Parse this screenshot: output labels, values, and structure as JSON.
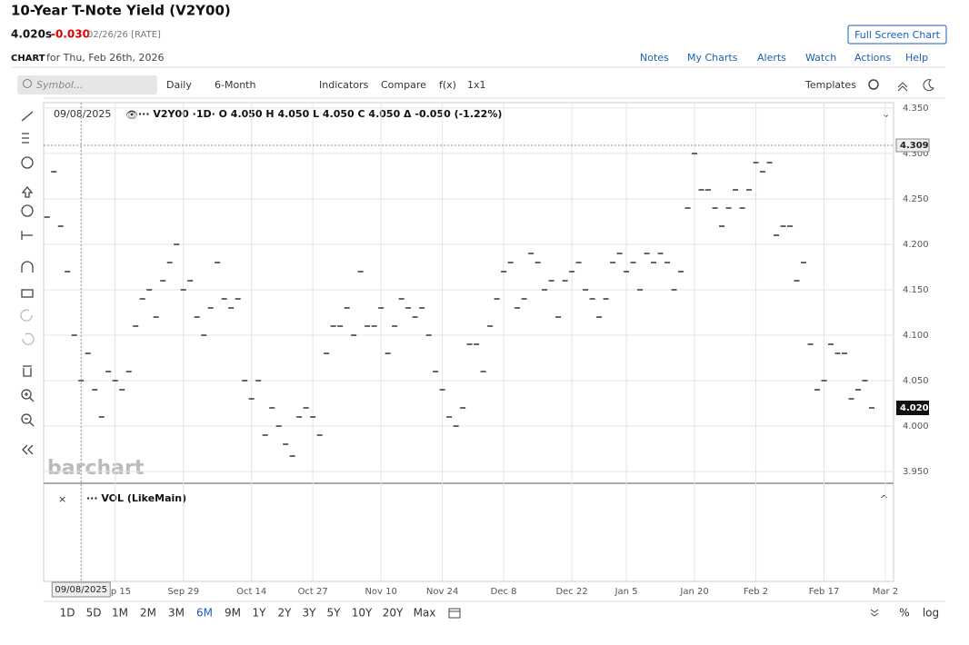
{
  "header": {
    "title": "10-Year T-Note Yield (V2Y00)",
    "last": "4.020s",
    "change": "-0.030",
    "date": "02/26/26 [RATE]",
    "chart_label": "CHART",
    "chart_for": "for Thu, Feb 26th, 2026",
    "full_screen": "Full Screen Chart",
    "links": [
      "Notes",
      "My Charts",
      "Alerts",
      "Watch",
      "Actions",
      "Help"
    ]
  },
  "toolbar": {
    "symbol_placeholder": "Symbol...",
    "items": [
      "Daily",
      "6-Month",
      "Indicators",
      "Compare",
      "f(x)",
      "1x1"
    ],
    "templates": "Templates"
  },
  "chart": {
    "legend_date": "09/08/2025",
    "legend": "··· V2Y00 ·1D· O 4.050 H 4.050 L 4.050 C 4.050 Δ -0.050 (-1.22%)",
    "volume_label": "··· VOL (LikeMain)",
    "watermark": "barchart",
    "crosshair_index": 5,
    "crosshair_label": "09/08/2025",
    "crosshair_price": {
      "value": 4.309,
      "label": "4.309"
    },
    "last_price": {
      "value": 4.02,
      "label": "4.020"
    },
    "ylim": [
      3.939,
      4.356
    ],
    "yticks": [
      {
        "value": 3.95,
        "label": "3.950"
      },
      {
        "value": 4.0,
        "label": "4.000"
      },
      {
        "value": 4.05,
        "label": "4.050"
      },
      {
        "value": 4.1,
        "label": "4.100"
      },
      {
        "value": 4.15,
        "label": "4.150"
      },
      {
        "value": 4.2,
        "label": "4.200"
      },
      {
        "value": 4.25,
        "label": "4.250"
      },
      {
        "value": 4.3,
        "label": "4.300"
      },
      {
        "value": 4.35,
        "label": "4.350"
      }
    ],
    "xlim": [
      -0.5,
      124.2
    ],
    "xticks": [
      {
        "value": 10,
        "label": "Sep 15"
      },
      {
        "value": 20,
        "label": "Sep 29"
      },
      {
        "value": 30,
        "label": "Oct 14"
      },
      {
        "value": 39,
        "label": "Oct 27"
      },
      {
        "value": 49,
        "label": "Nov 10"
      },
      {
        "value": 58,
        "label": "Nov 24"
      },
      {
        "value": 67,
        "label": "Dec 8"
      },
      {
        "value": 77,
        "label": "Dec 22"
      },
      {
        "value": 85,
        "label": "Jan 5"
      },
      {
        "value": 95,
        "label": "Jan 20"
      },
      {
        "value": 104,
        "label": "Feb 2"
      },
      {
        "value": 114,
        "label": "Feb 17"
      },
      {
        "value": 123,
        "label": "Mar 2"
      }
    ],
    "color": "#333333",
    "values": [
      4.23,
      4.28,
      4.22,
      4.17,
      4.1,
      4.05,
      4.08,
      4.04,
      4.01,
      4.06,
      4.05,
      4.04,
      4.06,
      4.11,
      4.14,
      4.15,
      4.12,
      4.16,
      4.18,
      4.2,
      4.15,
      4.16,
      4.12,
      4.1,
      4.13,
      4.18,
      4.14,
      4.13,
      4.14,
      4.05,
      4.03,
      4.05,
      3.99,
      4.02,
      4.0,
      3.98,
      3.967,
      4.01,
      4.02,
      4.01,
      3.99,
      4.08,
      4.11,
      4.11,
      4.13,
      4.1,
      4.17,
      4.11,
      4.11,
      4.13,
      4.08,
      4.11,
      4.14,
      4.13,
      4.12,
      4.13,
      4.1,
      4.06,
      4.04,
      4.01,
      4.0,
      4.02,
      4.09,
      4.09,
      4.06,
      4.11,
      4.14,
      4.17,
      4.18,
      4.13,
      4.14,
      4.19,
      4.18,
      4.15,
      4.16,
      4.12,
      4.16,
      4.17,
      4.18,
      4.15,
      4.14,
      4.12,
      4.14,
      4.18,
      4.19,
      4.17,
      4.18,
      4.15,
      4.19,
      4.18,
      4.19,
      4.18,
      4.15,
      4.17,
      4.24,
      4.3,
      4.26,
      4.26,
      4.24,
      4.22,
      4.24,
      4.26,
      4.24,
      4.26,
      4.29,
      4.28,
      4.29,
      4.21,
      4.22,
      4.22,
      4.16,
      4.18,
      4.09,
      4.04,
      4.05,
      4.09,
      4.08,
      4.08,
      4.03,
      4.04,
      4.05,
      4.02
    ]
  },
  "periods": [
    "1D",
    "5D",
    "1M",
    "2M",
    "3M",
    "6M",
    "9M",
    "1Y",
    "2Y",
    "3Y",
    "5Y",
    "10Y",
    "20Y",
    "Max"
  ],
  "active_period_index": 5,
  "footer_right": [
    "%",
    "log"
  ]
}
